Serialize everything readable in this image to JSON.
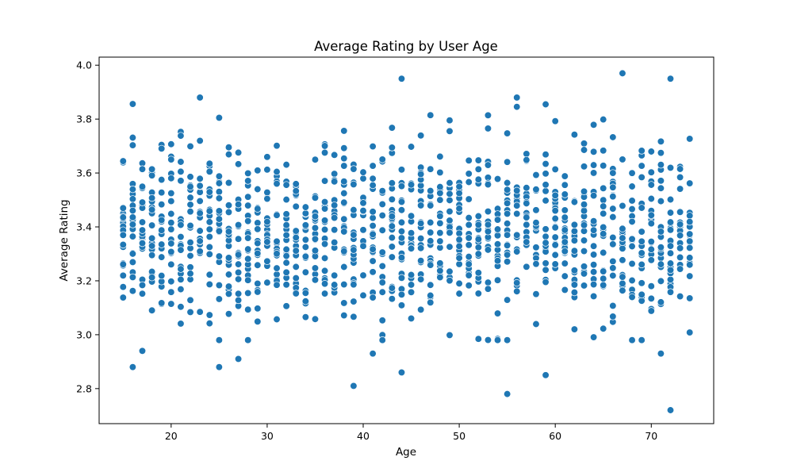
{
  "chart_data": {
    "type": "scatter",
    "title": "Average Rating by User Age",
    "xlabel": "Age",
    "ylabel": "Average Rating",
    "xlim": [
      12.5,
      76.5
    ],
    "ylim": [
      2.67,
      4.03
    ],
    "xticks": [
      20,
      30,
      40,
      50,
      60,
      70
    ],
    "yticks": [
      2.8,
      3.0,
      3.2,
      3.4,
      3.6,
      3.8,
      4.0
    ],
    "ytick_labels": [
      "2.8",
      "3.0",
      "3.2",
      "3.4",
      "3.6",
      "3.8",
      "4.0"
    ],
    "grid": false,
    "marker_color": "#1f77b4",
    "marker_edge_color": "#ffffff",
    "x_range": [
      15,
      74
    ],
    "points_per_age": 20,
    "rating_center": 3.38,
    "rating_spread": 0.16,
    "outliers": [
      {
        "x": 16,
        "y": 2.88
      },
      {
        "x": 17,
        "y": 2.94
      },
      {
        "x": 23,
        "y": 3.88
      },
      {
        "x": 25,
        "y": 2.88
      },
      {
        "x": 27,
        "y": 2.91
      },
      {
        "x": 39,
        "y": 2.81
      },
      {
        "x": 41,
        "y": 2.93
      },
      {
        "x": 44,
        "y": 2.86
      },
      {
        "x": 44,
        "y": 3.95
      },
      {
        "x": 55,
        "y": 2.78
      },
      {
        "x": 56,
        "y": 3.88
      },
      {
        "x": 59,
        "y": 2.85
      },
      {
        "x": 67,
        "y": 3.97
      },
      {
        "x": 71,
        "y": 2.93
      },
      {
        "x": 72,
        "y": 3.95
      },
      {
        "x": 72,
        "y": 2.72
      }
    ]
  }
}
